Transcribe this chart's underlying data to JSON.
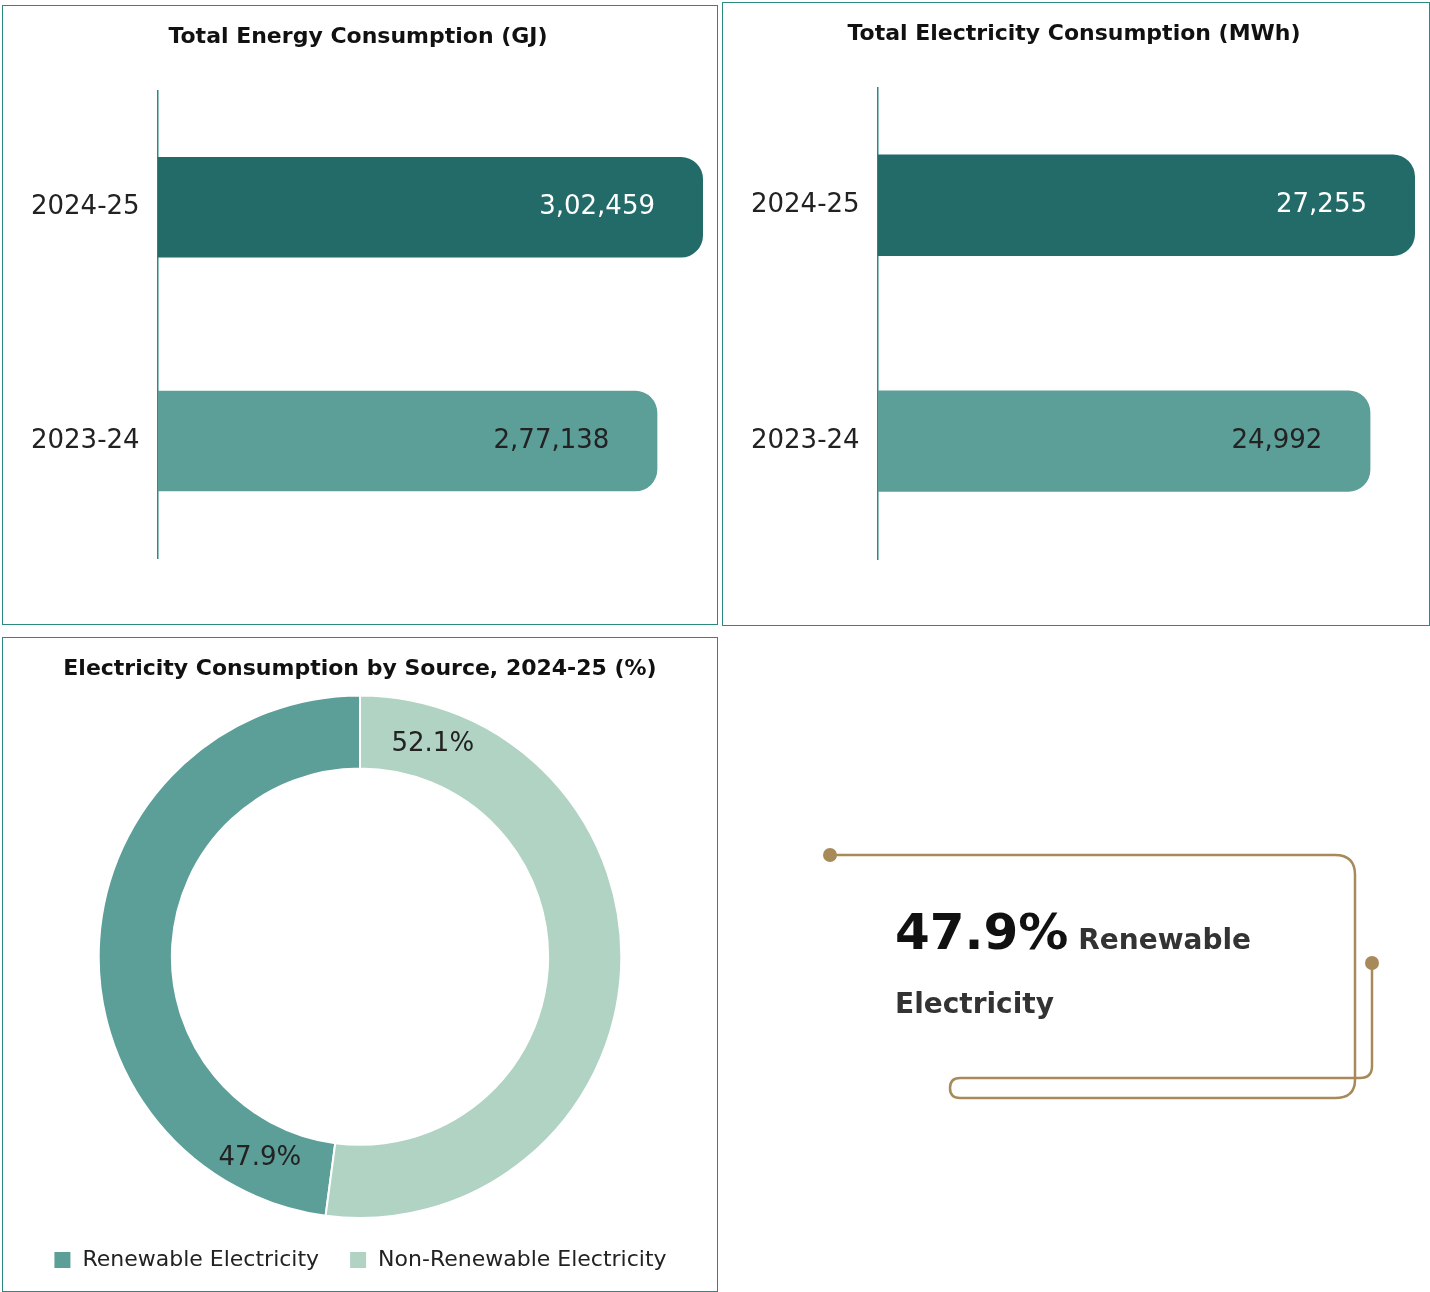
{
  "chart_data": [
    {
      "type": "bar",
      "orientation": "horizontal",
      "title": "Total Energy Consumption (GJ)",
      "categories": [
        "2024-25",
        "2023-24"
      ],
      "values": [
        302459,
        277138
      ],
      "colors": [
        "#236b68",
        "#5c9e98"
      ],
      "value_labels": [
        "3,02,459",
        "2,77,138"
      ],
      "tick_labels": "y"
    },
    {
      "type": "bar",
      "orientation": "horizontal",
      "title": "Total Electricity Consumption (MWh)",
      "categories": [
        "2024-25",
        "2023-24"
      ],
      "values": [
        27255,
        24992
      ],
      "colors": [
        "#236b68",
        "#5c9e98"
      ],
      "value_labels": [
        "27,255",
        "24,992"
      ],
      "tick_labels": "y"
    },
    {
      "type": "donut",
      "title": "Electricity Consumption by Source, 2024-25 (%)",
      "categories": [
        "Renewable Electricity",
        "Non-Renewable Electricity"
      ],
      "values": [
        47.9,
        52.1
      ],
      "colors": [
        "#5c9e98",
        "#b0d3c3"
      ],
      "value_labels": [
        "47.9%",
        "52.1%"
      ],
      "legend": "bottom"
    },
    {
      "type": "other",
      "title": "47.9%",
      "subtitle": "Renewable Electricity"
    }
  ]
}
